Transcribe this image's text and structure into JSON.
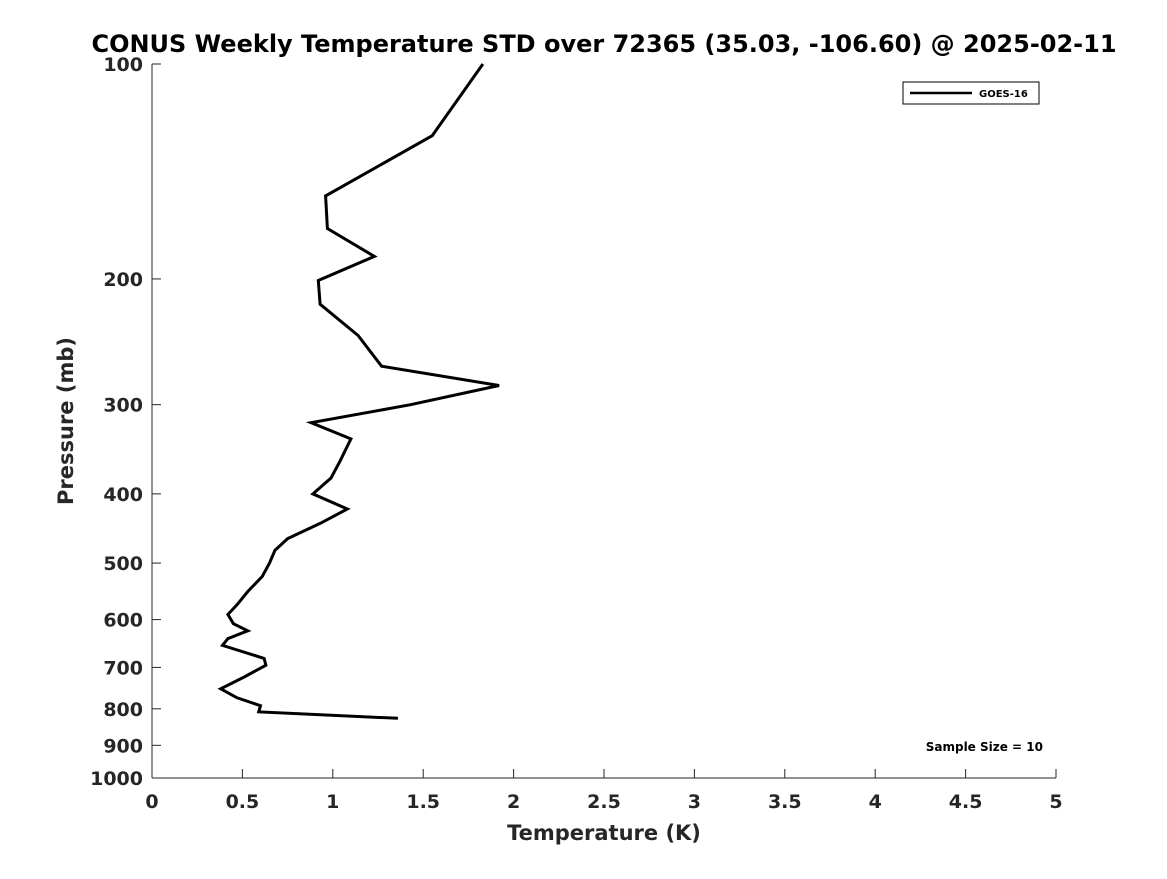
{
  "chart_data": {
    "type": "line",
    "title": "CONUS Weekly Temperature STD over 72365 (35.03, -106.60) @ 2025-02-11",
    "xlabel": "Temperature (K)",
    "ylabel": "Pressure (mb)",
    "xlim": [
      0,
      5
    ],
    "ylim": [
      100,
      1000
    ],
    "y_scale": "log",
    "y_reversed": true,
    "x_ticks": [
      "0",
      "0.5",
      "1",
      "1.5",
      "2",
      "2.5",
      "3",
      "3.5",
      "4",
      "4.5",
      "5"
    ],
    "y_ticks": [
      "100",
      "200",
      "300",
      "400",
      "500",
      "600",
      "700",
      "800",
      "900",
      "1000"
    ],
    "grid": false,
    "legend_position": "top-right",
    "annotation": "Sample Size = 10",
    "series": [
      {
        "name": "GOES-16",
        "color": "#000000",
        "points": [
          {
            "x": 1.83,
            "y": 100
          },
          {
            "x": 1.55,
            "y": 126
          },
          {
            "x": 0.96,
            "y": 153
          },
          {
            "x": 0.97,
            "y": 170
          },
          {
            "x": 1.23,
            "y": 186
          },
          {
            "x": 0.92,
            "y": 201
          },
          {
            "x": 0.93,
            "y": 217
          },
          {
            "x": 1.14,
            "y": 240
          },
          {
            "x": 1.27,
            "y": 265
          },
          {
            "x": 1.92,
            "y": 282
          },
          {
            "x": 1.43,
            "y": 300
          },
          {
            "x": 0.88,
            "y": 318
          },
          {
            "x": 1.1,
            "y": 335
          },
          {
            "x": 1.04,
            "y": 360
          },
          {
            "x": 0.99,
            "y": 380
          },
          {
            "x": 0.89,
            "y": 400
          },
          {
            "x": 1.08,
            "y": 420
          },
          {
            "x": 0.93,
            "y": 440
          },
          {
            "x": 0.75,
            "y": 462
          },
          {
            "x": 0.68,
            "y": 480
          },
          {
            "x": 0.65,
            "y": 500
          },
          {
            "x": 0.61,
            "y": 522
          },
          {
            "x": 0.53,
            "y": 548
          },
          {
            "x": 0.47,
            "y": 572
          },
          {
            "x": 0.42,
            "y": 590
          },
          {
            "x": 0.45,
            "y": 608
          },
          {
            "x": 0.53,
            "y": 622
          },
          {
            "x": 0.42,
            "y": 638
          },
          {
            "x": 0.39,
            "y": 652
          },
          {
            "x": 0.62,
            "y": 680
          },
          {
            "x": 0.63,
            "y": 695
          },
          {
            "x": 0.51,
            "y": 722
          },
          {
            "x": 0.38,
            "y": 750
          },
          {
            "x": 0.47,
            "y": 772
          },
          {
            "x": 0.6,
            "y": 792
          },
          {
            "x": 0.59,
            "y": 808
          },
          {
            "x": 1.36,
            "y": 825
          }
        ]
      }
    ]
  }
}
